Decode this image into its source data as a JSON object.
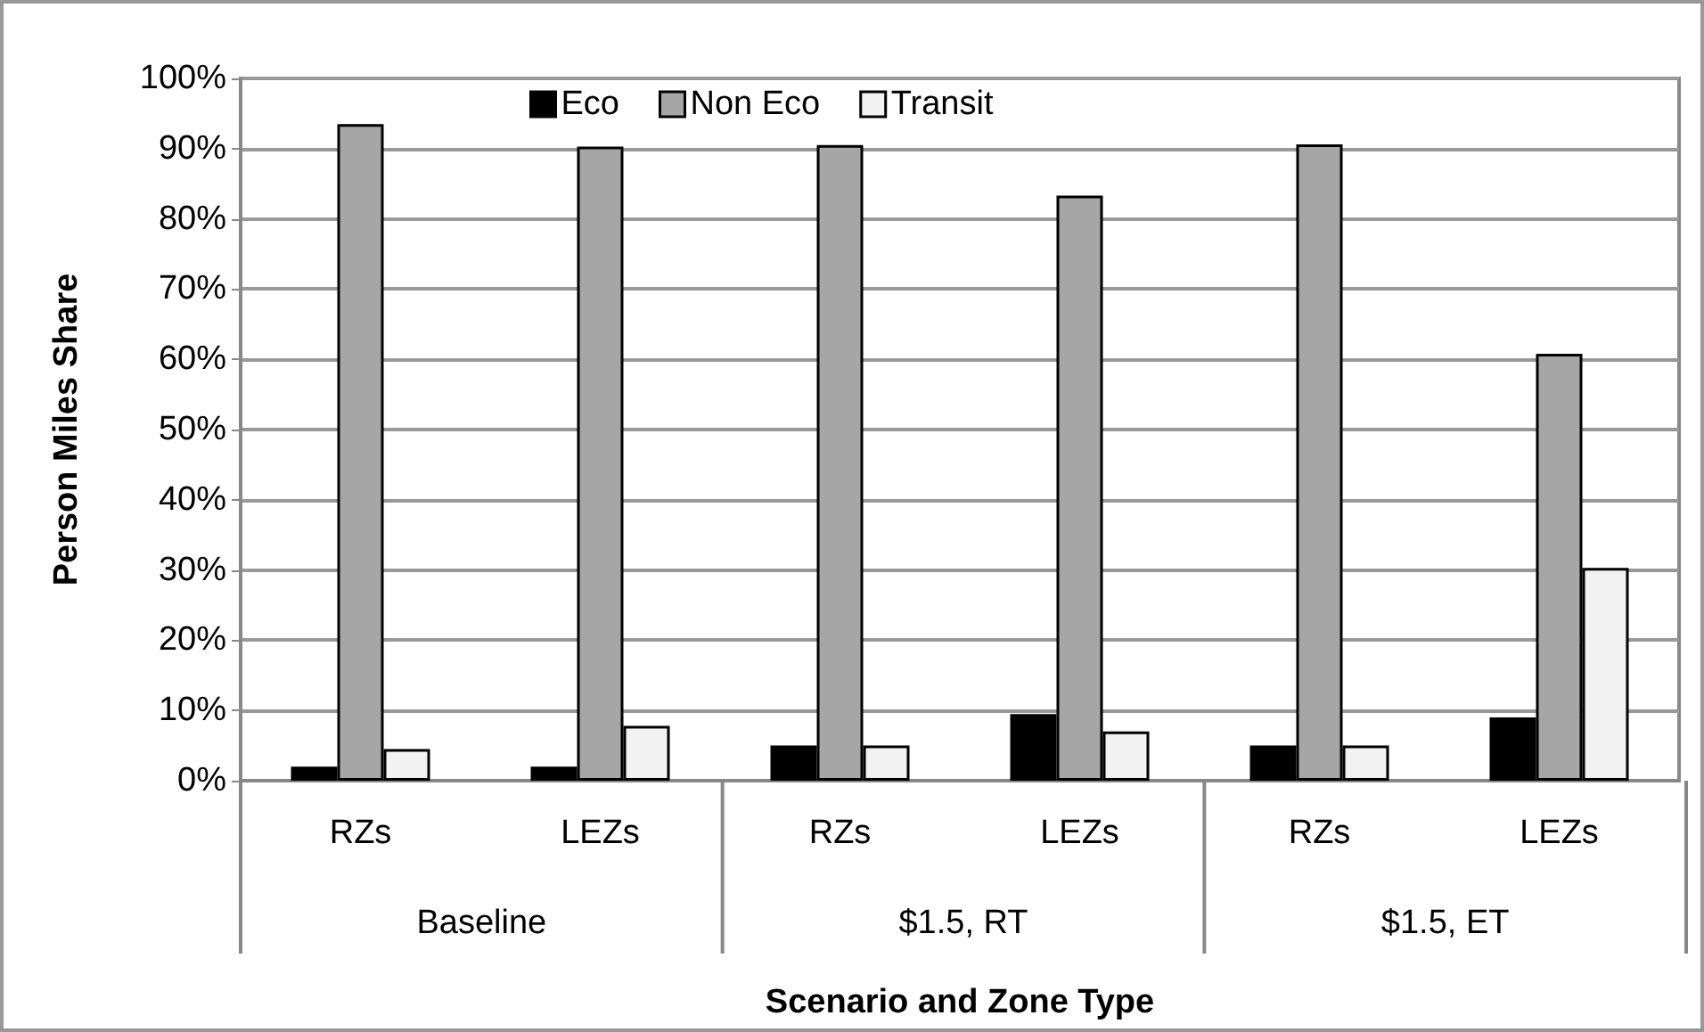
{
  "chart_data": {
    "type": "bar",
    "xlabel": "Scenario and Zone Type",
    "ylabel": "Person Miles Share",
    "categories": [
      "RZs",
      "LEZs",
      "RZs",
      "LEZs",
      "RZs",
      "LEZs"
    ],
    "annotations": [
      "Baseline",
      "$1.5, RT",
      "$1.5, ET"
    ],
    "series": [
      {
        "name": "Eco",
        "color": "#000000",
        "values": [
          2,
          2,
          5,
          9.5,
          5,
          9
        ]
      },
      {
        "name": "Non Eco",
        "color": "#a6a6a6",
        "values": [
          93.5,
          90.3,
          90.5,
          83.3,
          90.6,
          60.8
        ]
      },
      {
        "name": "Transit",
        "color": "#f2f2f2",
        "values": [
          4.5,
          7.8,
          5,
          7,
          5,
          30.3
        ]
      }
    ],
    "ylim": [
      0,
      100
    ],
    "yticks": [
      {
        "value": 0,
        "label": "0%"
      },
      {
        "value": 10,
        "label": "10%"
      },
      {
        "value": 20,
        "label": "20%"
      },
      {
        "value": 30,
        "label": "30%"
      },
      {
        "value": 40,
        "label": "40%"
      },
      {
        "value": 50,
        "label": "50%"
      },
      {
        "value": 60,
        "label": "60%"
      },
      {
        "value": 70,
        "label": "70%"
      },
      {
        "value": 80,
        "label": "80%"
      },
      {
        "value": 90,
        "label": "90%"
      },
      {
        "value": 100,
        "label": "100%"
      }
    ],
    "grid": "y",
    "legend": "top"
  }
}
